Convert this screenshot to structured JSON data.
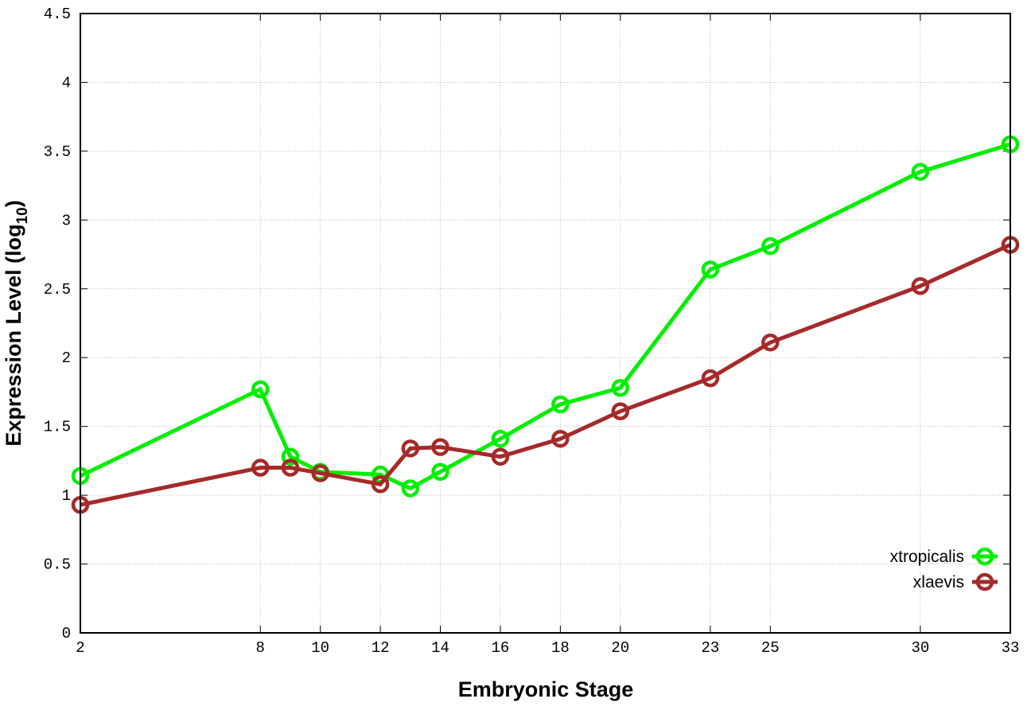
{
  "chart_data": {
    "type": "line",
    "title": "",
    "xlabel": "Embryonic Stage",
    "ylabel": "Expression Level (log",
    "ylabel_sub": "10",
    "ylabel_close": ")",
    "xlim": [
      2,
      33
    ],
    "ylim": [
      0,
      4.5
    ],
    "xticks": [
      2,
      8,
      10,
      12,
      14,
      16,
      18,
      20,
      23,
      25,
      30,
      33
    ],
    "yticks": [
      "0",
      "0.5",
      "1",
      "1.5",
      "2",
      "2.5",
      "3",
      "3.5",
      "4",
      "4.5"
    ],
    "grid": true,
    "legend_placement": "bottom-right",
    "x": [
      2,
      8,
      9,
      10,
      12,
      13,
      14,
      16,
      18,
      20,
      23,
      25,
      30,
      33
    ],
    "series": [
      {
        "name": "xtropicalis",
        "color": "#00ee00",
        "values": [
          1.14,
          1.77,
          1.28,
          1.17,
          1.15,
          1.05,
          1.17,
          1.41,
          1.66,
          1.78,
          2.64,
          2.81,
          3.35,
          3.55
        ]
      },
      {
        "name": "xlaevis",
        "color": "#a52a2a",
        "values": [
          0.93,
          1.2,
          1.2,
          1.16,
          1.08,
          1.34,
          1.35,
          1.28,
          1.41,
          1.61,
          1.85,
          2.11,
          2.52,
          2.82
        ]
      }
    ]
  }
}
